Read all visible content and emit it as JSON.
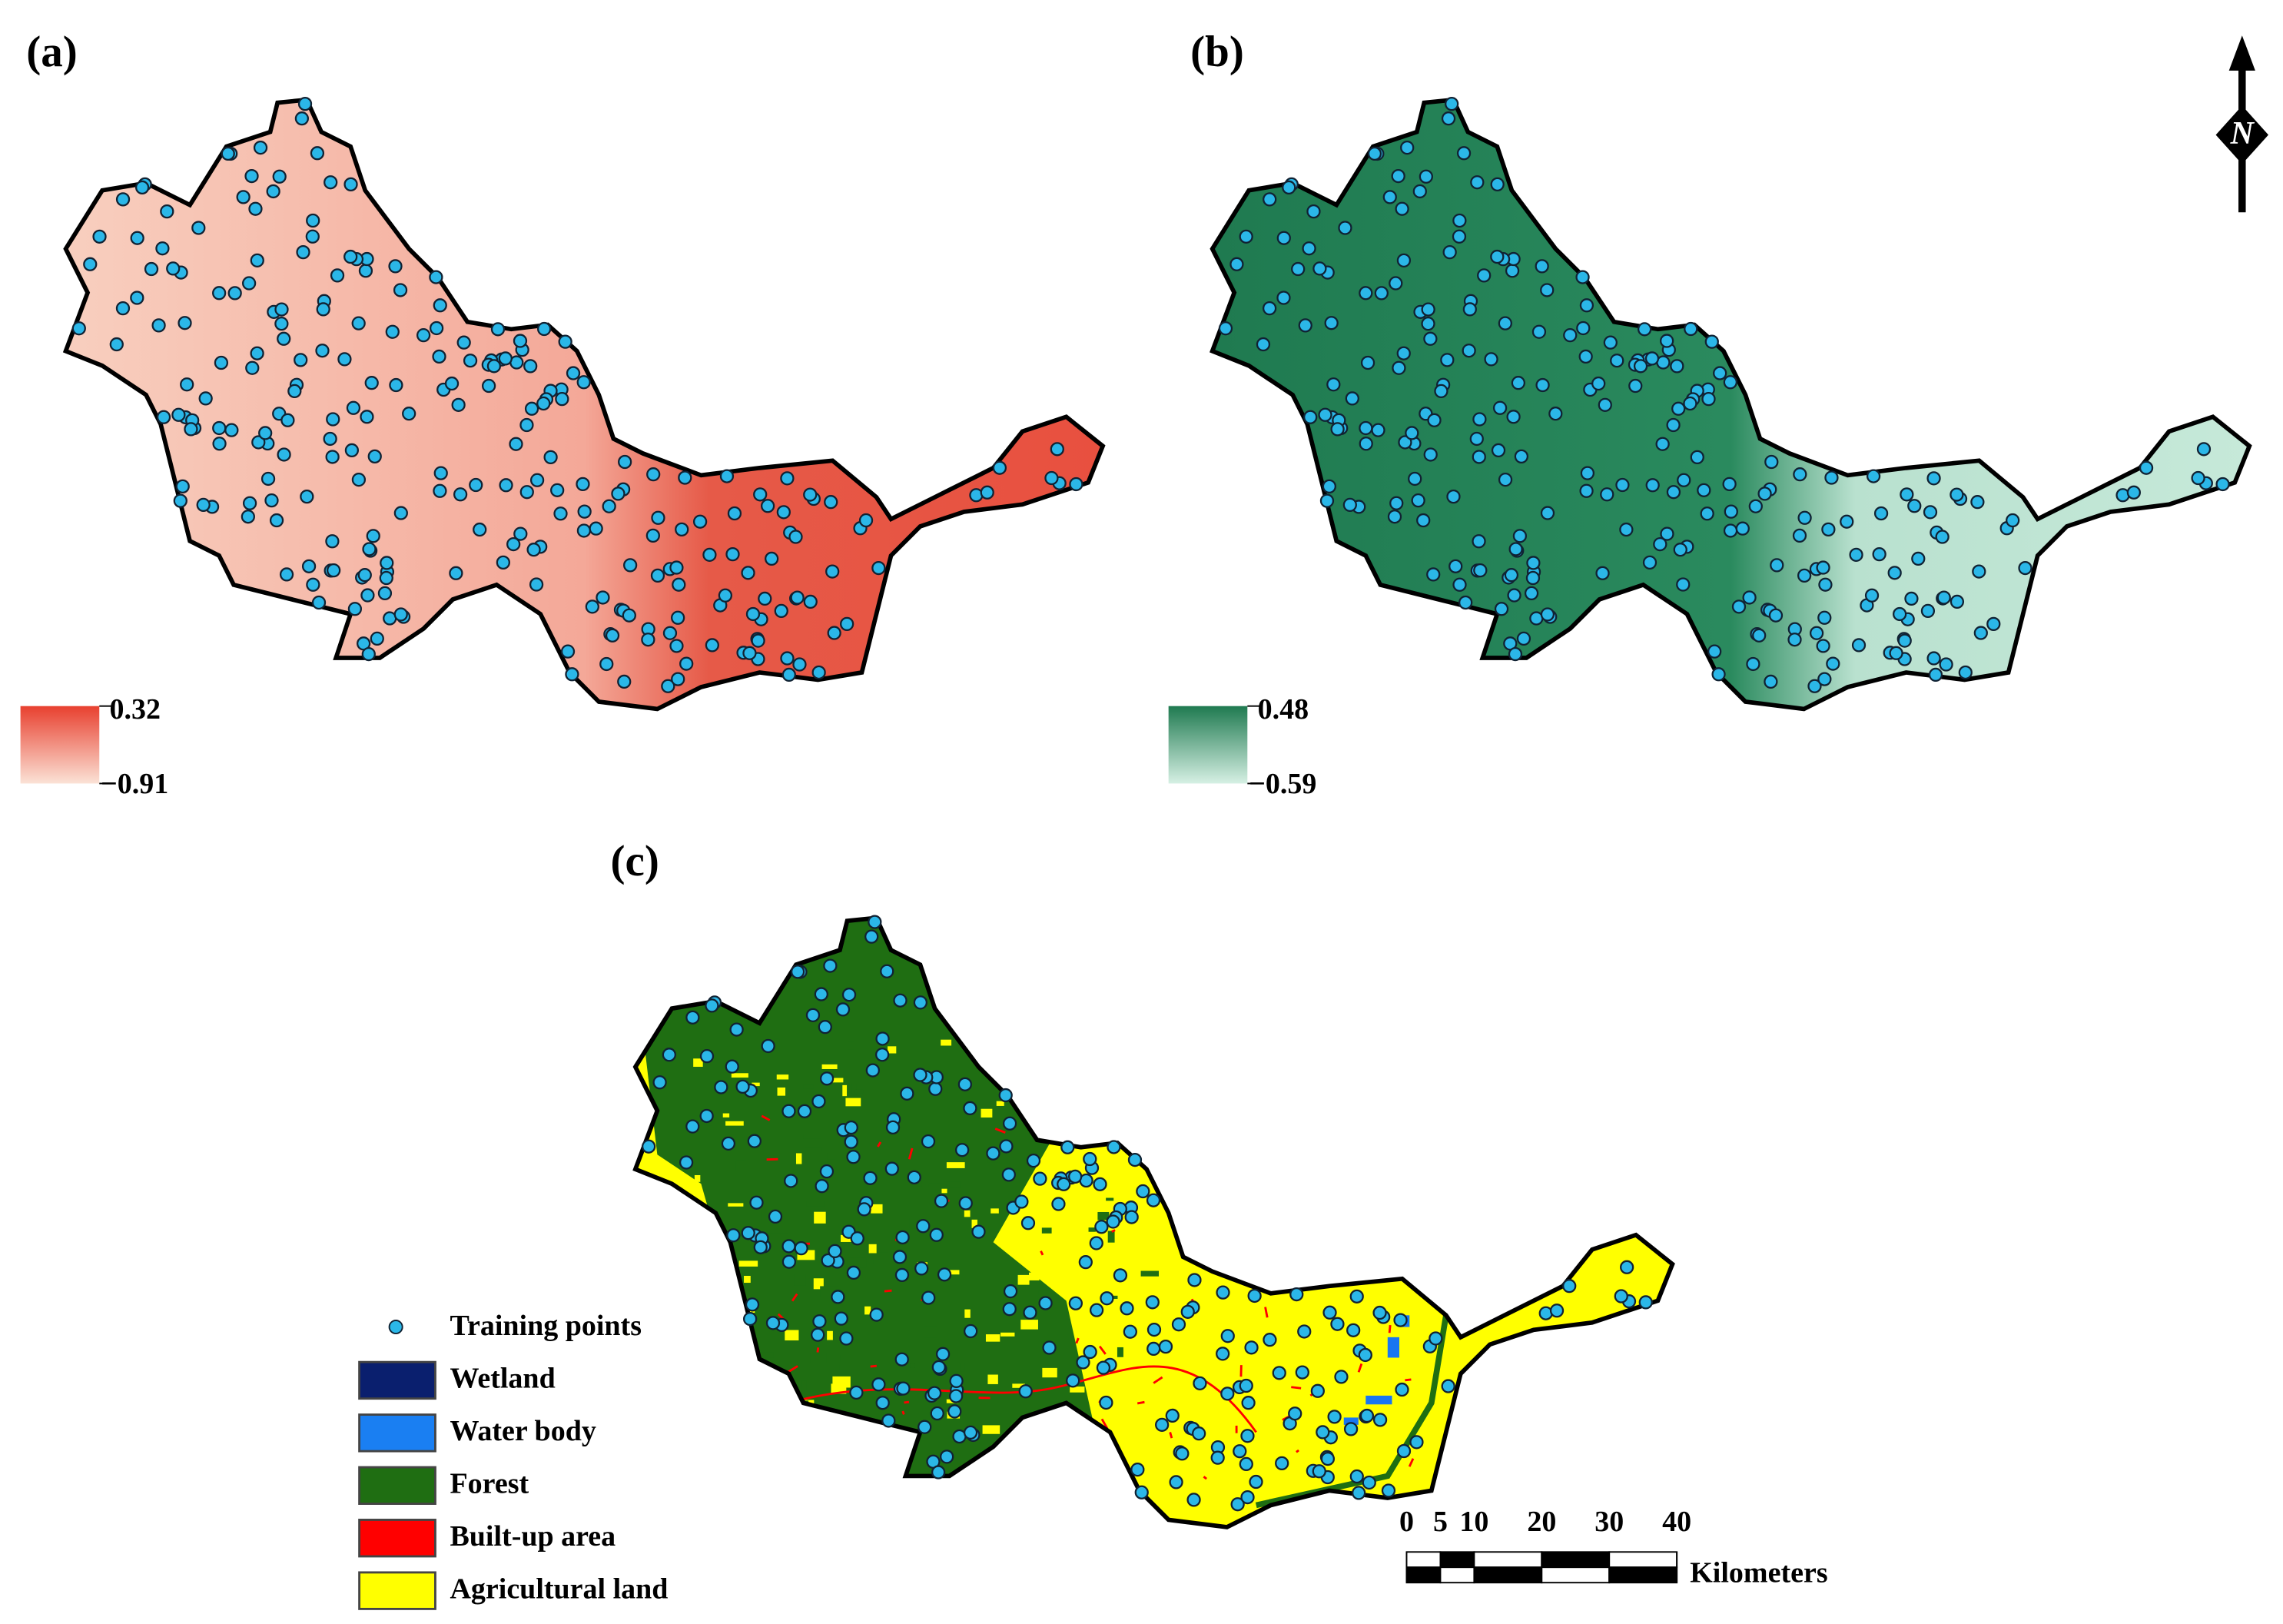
{
  "panels": [
    {
      "label": "(a)",
      "colorbar": {
        "max": 0.32,
        "min": {
          "value": -0.91,
          "label": "−0.91"
        }
      }
    },
    {
      "label": "(b)",
      "colorbar": {
        "max": 0.48,
        "min": {
          "value": -0.59,
          "label": "−0.59"
        }
      }
    },
    {
      "label": "(c)"
    }
  ],
  "legend": [
    "Training points",
    "Wetland",
    "Water body",
    "Forest",
    "Built-up area",
    "Agricultural land"
  ],
  "scale_bar": {
    "ticks": [
      0,
      5,
      10,
      20,
      30,
      40
    ],
    "unit": "Kilometers"
  },
  "north_arrow": "N"
}
